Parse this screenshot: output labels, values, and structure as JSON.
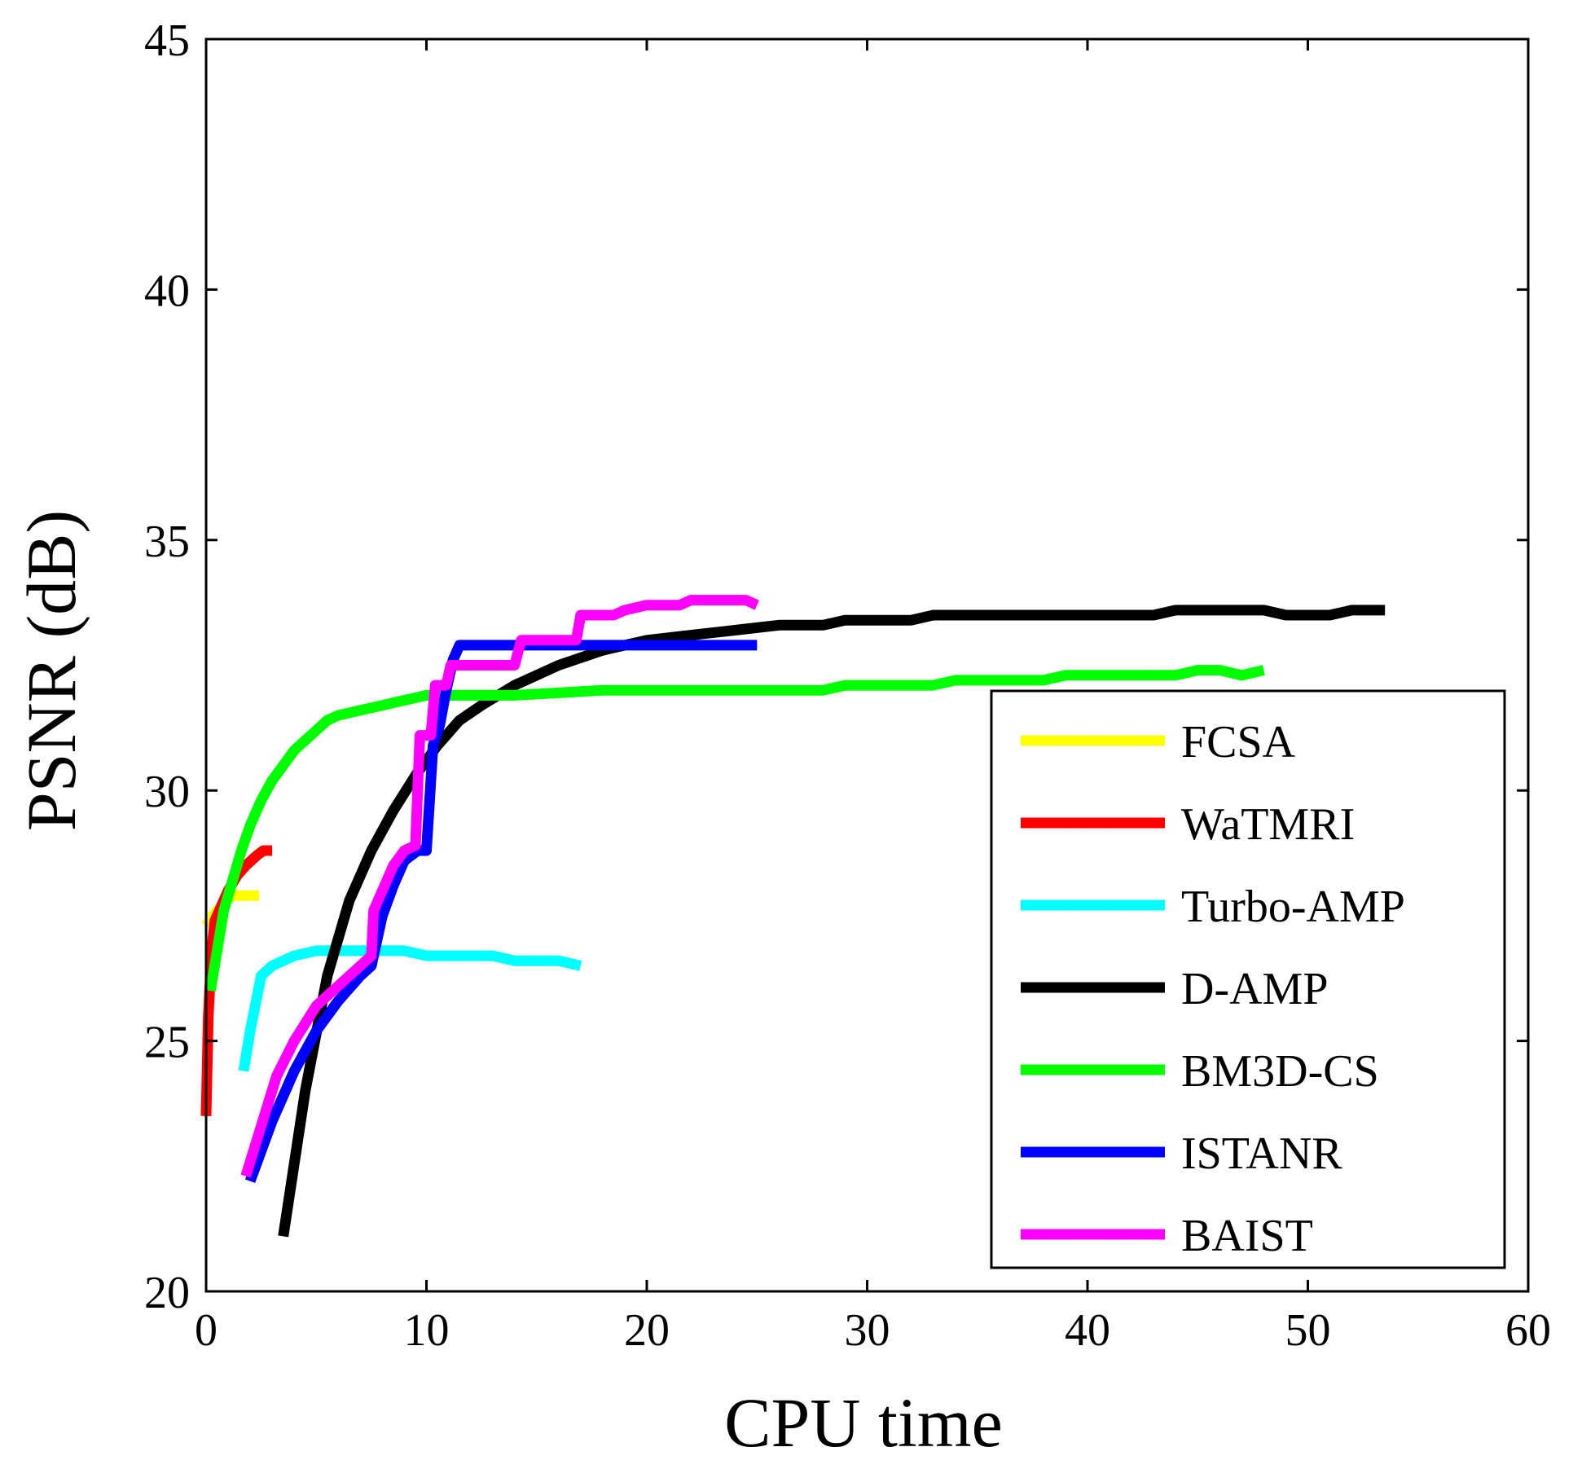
{
  "chart_data": {
    "type": "line",
    "title": "",
    "xlabel": "CPU time",
    "ylabel": "PSNR (dB)",
    "xlim": [
      0,
      60
    ],
    "ylim": [
      20,
      45
    ],
    "xticks": [
      0,
      10,
      20,
      30,
      40,
      50,
      60
    ],
    "yticks": [
      20,
      25,
      30,
      35,
      40,
      45
    ],
    "grid": false,
    "legend_position": "right",
    "series": [
      {
        "name": "FCSA",
        "color": "#ffff00",
        "x": [
          0.0,
          0.3,
          0.7,
          1.2,
          2.4
        ],
        "y": [
          27.3,
          27.5,
          27.7,
          27.9,
          27.9
        ]
      },
      {
        "name": "WaTMRI",
        "color": "#ff0000",
        "x": [
          0.0,
          0.1,
          0.25,
          0.4,
          0.7,
          1.0,
          1.4,
          1.8,
          2.3,
          2.6,
          3.0
        ],
        "y": [
          23.5,
          25.5,
          26.8,
          27.4,
          27.7,
          28.0,
          28.3,
          28.5,
          28.7,
          28.8,
          28.8
        ]
      },
      {
        "name": "Turbo-AMP",
        "color": "#00ffff",
        "x": [
          1.7,
          2.0,
          2.5,
          3.0,
          3.5,
          4.0,
          5.0,
          7.0,
          9.0,
          10.0,
          12.0,
          13.0,
          14.0,
          16.0,
          17.0
        ],
        "y": [
          24.4,
          25.2,
          26.3,
          26.5,
          26.6,
          26.7,
          26.8,
          26.8,
          26.8,
          26.7,
          26.7,
          26.7,
          26.6,
          26.6,
          26.5
        ]
      },
      {
        "name": "D-AMP",
        "color": "#000000",
        "x": [
          3.5,
          4.5,
          5.5,
          6.5,
          7.5,
          8.5,
          9.5,
          10.5,
          11.5,
          12.5,
          14,
          16,
          18,
          20,
          22,
          24,
          26,
          28,
          29,
          32,
          33,
          43,
          44,
          48,
          49,
          51,
          52,
          53.5
        ],
        "y": [
          21.1,
          24.0,
          26.3,
          27.8,
          28.8,
          29.6,
          30.3,
          30.9,
          31.4,
          31.7,
          32.1,
          32.5,
          32.8,
          33.0,
          33.1,
          33.2,
          33.3,
          33.3,
          33.4,
          33.4,
          33.5,
          33.5,
          33.6,
          33.6,
          33.5,
          33.5,
          33.6,
          33.6
        ]
      },
      {
        "name": "BM3D-CS",
        "color": "#00ff00",
        "x": [
          0.2,
          0.5,
          0.8,
          1.2,
          1.6,
          2.0,
          2.5,
          3.0,
          3.5,
          4.0,
          4.5,
          5.0,
          5.5,
          6.0,
          7.0,
          8.0,
          9.0,
          10.0,
          12.0,
          14.0,
          18.0,
          20.0,
          25.0,
          28.0,
          29.0,
          33.0,
          34.0,
          38.0,
          39.0,
          44.0,
          45.0,
          46.0,
          47.0,
          48.0
        ],
        "y": [
          26.0,
          26.8,
          27.6,
          28.2,
          28.8,
          29.3,
          29.8,
          30.2,
          30.5,
          30.8,
          31.0,
          31.2,
          31.4,
          31.5,
          31.6,
          31.7,
          31.8,
          31.9,
          31.9,
          31.9,
          32.0,
          32.0,
          32.0,
          32.0,
          32.1,
          32.1,
          32.2,
          32.2,
          32.3,
          32.3,
          32.4,
          32.4,
          32.3,
          32.4
        ]
      },
      {
        "name": "ISTANR",
        "color": "#0000ff",
        "x": [
          2.0,
          3.0,
          4.0,
          5.0,
          6.0,
          7.0,
          7.5,
          8.0,
          8.5,
          9.0,
          9.6,
          10.0,
          10.3,
          10.6,
          10.9,
          11.2,
          11.5,
          12.0,
          13.0,
          15.0,
          20.0,
          25.0
        ],
        "y": [
          22.2,
          23.4,
          24.4,
          25.2,
          25.8,
          26.3,
          26.5,
          27.5,
          28.1,
          28.6,
          28.8,
          28.8,
          30.9,
          31.3,
          32.0,
          32.6,
          32.9,
          32.9,
          32.9,
          32.9,
          32.9,
          32.9
        ]
      },
      {
        "name": "BAIST",
        "color": "#ff00ff",
        "x": [
          1.8,
          2.5,
          3.2,
          4.0,
          5.0,
          6.0,
          7.0,
          7.5,
          7.6,
          8.0,
          8.5,
          9.0,
          9.5,
          9.7,
          10.2,
          10.4,
          10.9,
          11.1,
          11.7,
          12.0,
          14.0,
          14.3,
          16.8,
          17.0,
          18.5,
          19.0,
          20.0,
          21.5,
          22.0,
          24.5,
          25.0
        ],
        "y": [
          22.3,
          23.3,
          24.3,
          25.0,
          25.7,
          26.1,
          26.5,
          26.7,
          27.6,
          28.0,
          28.5,
          28.8,
          28.9,
          31.1,
          31.1,
          32.1,
          32.1,
          32.5,
          32.5,
          32.5,
          32.5,
          33.0,
          33.0,
          33.5,
          33.5,
          33.6,
          33.7,
          33.7,
          33.8,
          33.8,
          33.7
        ]
      }
    ]
  }
}
